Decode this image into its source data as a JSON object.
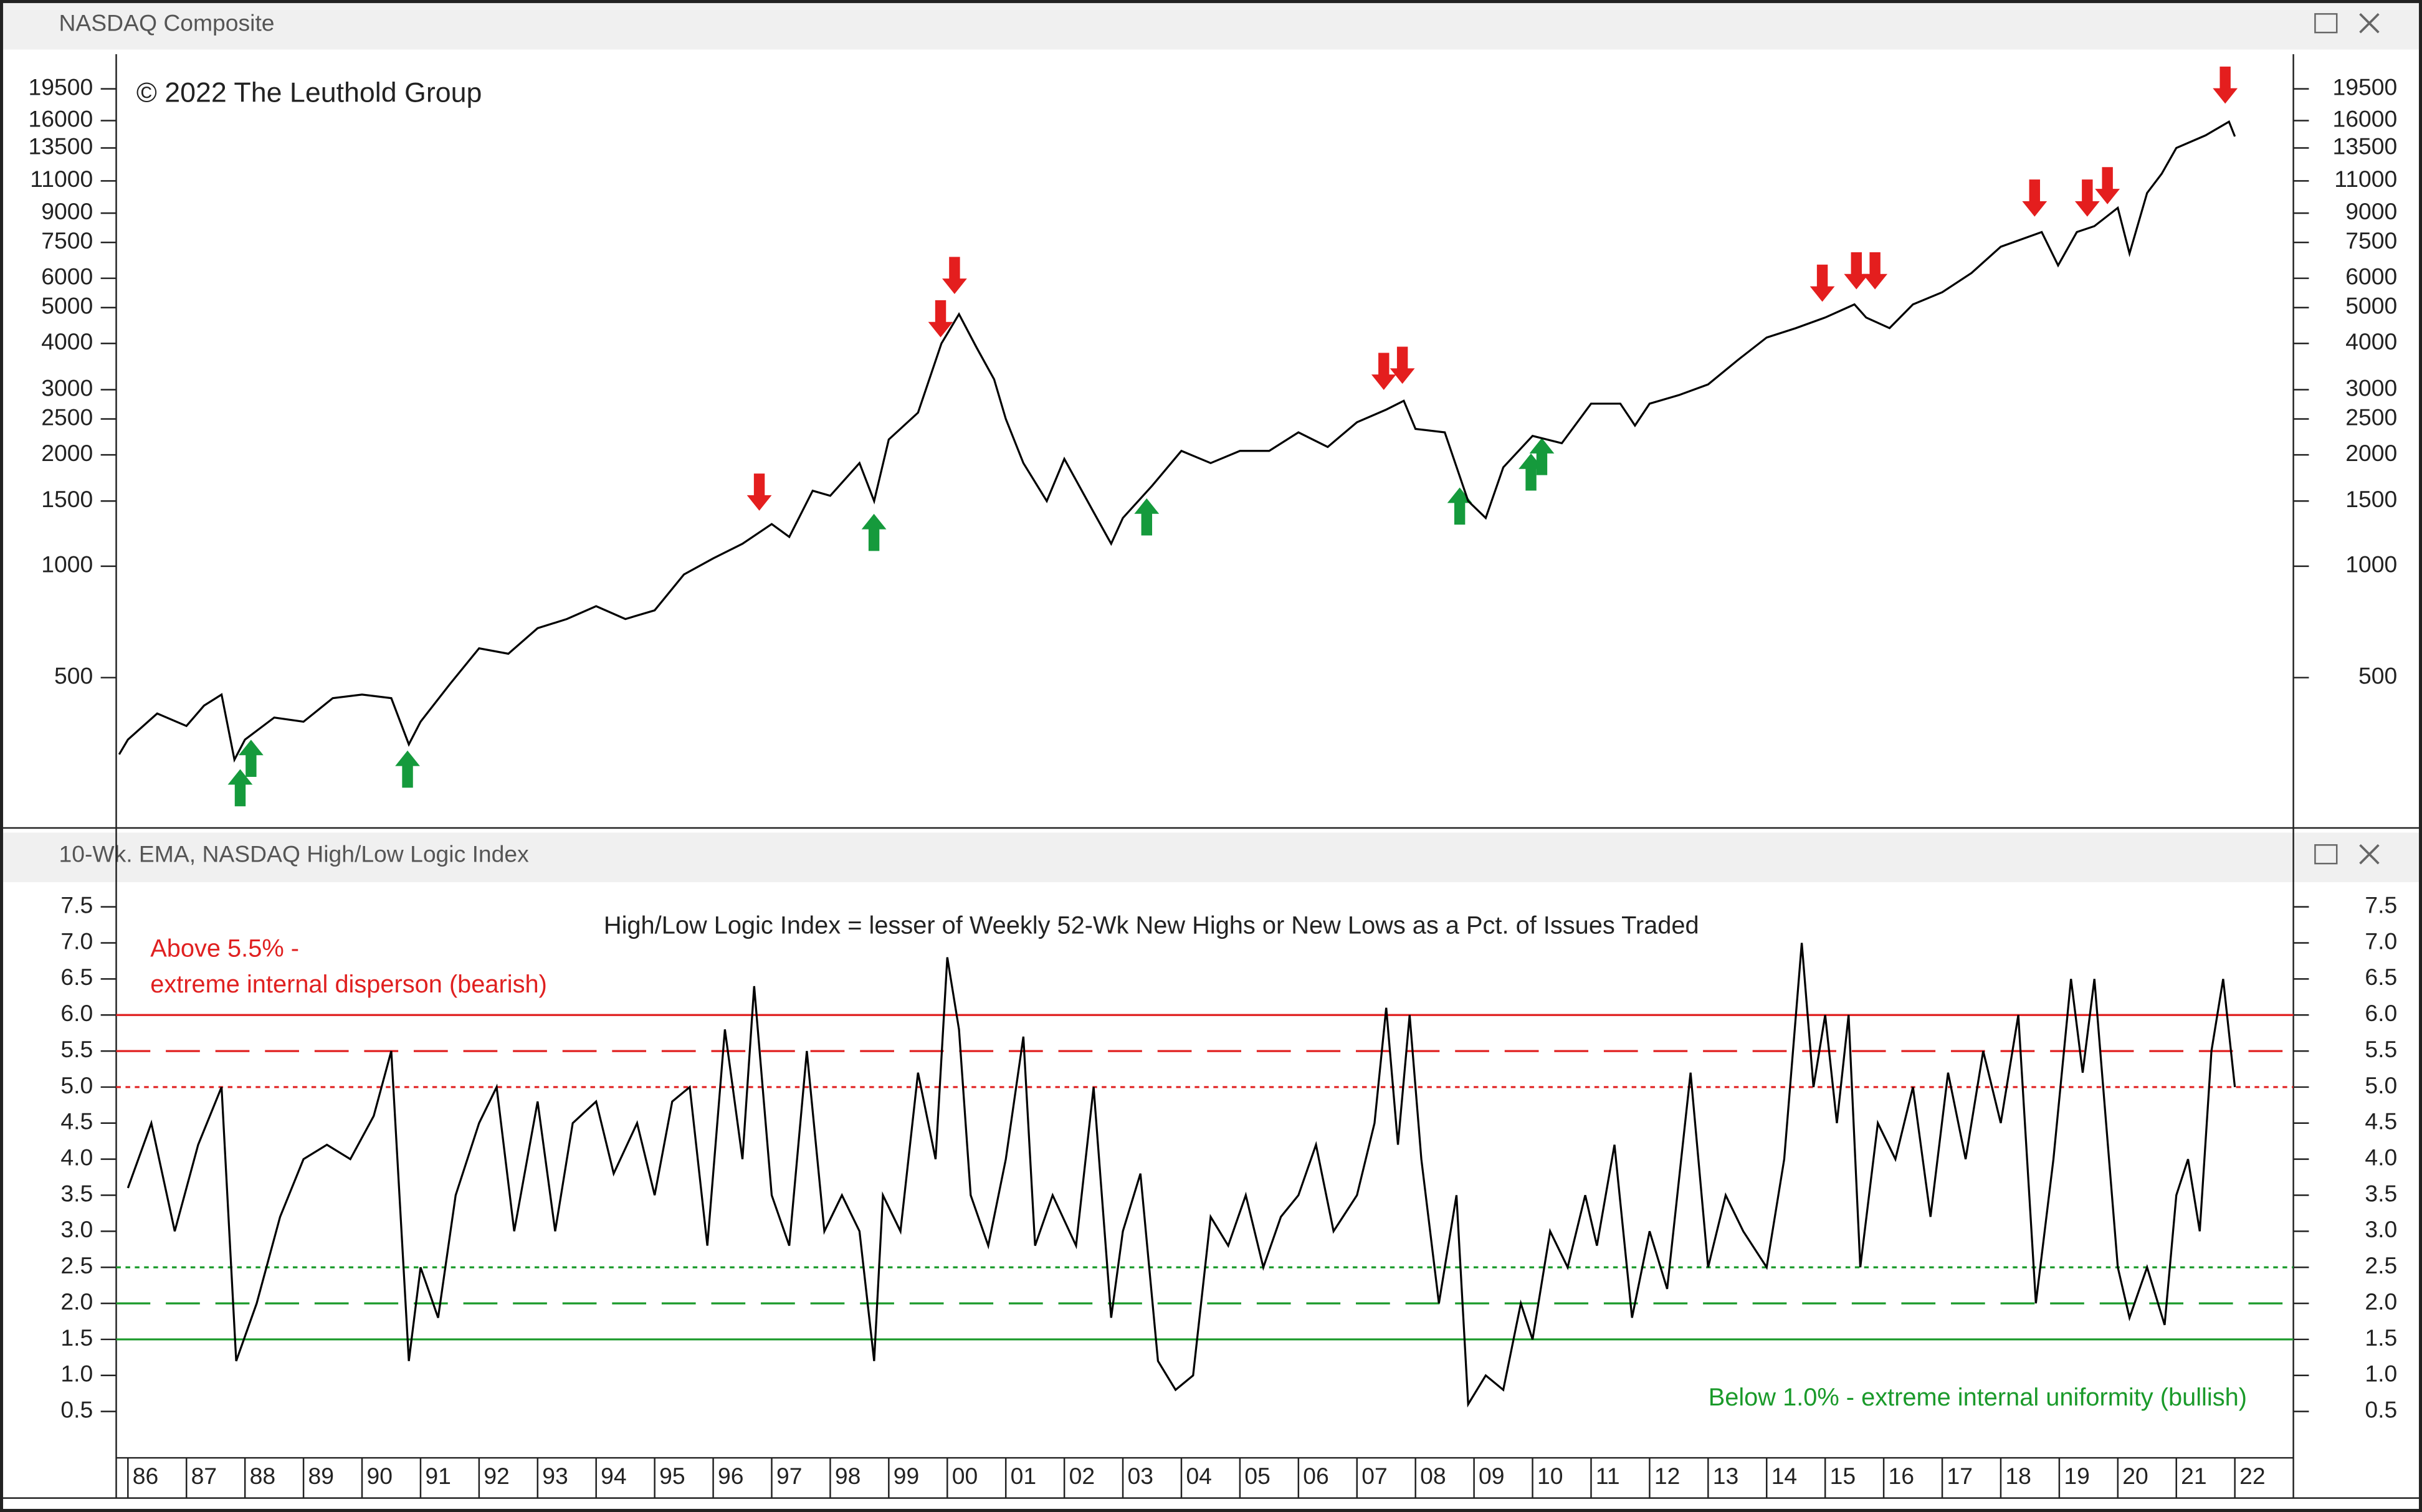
{
  "chart_data": [
    {
      "type": "line",
      "title": "NASDAQ Composite",
      "annotation": "© 2022 The Leuthold Group",
      "color": "#000000",
      "log_scale": true,
      "x": [
        1985.85,
        1986.0,
        1986.5,
        1987.0,
        1987.3,
        1987.6,
        1987.82,
        1988.0,
        1988.5,
        1989.0,
        1989.5,
        1990.0,
        1990.5,
        1990.8,
        1991.0,
        1991.5,
        1992.0,
        1992.5,
        1993.0,
        1993.5,
        1994.0,
        1994.5,
        1995.0,
        1995.5,
        1996.0,
        1996.5,
        1997.0,
        1997.3,
        1997.7,
        1998.0,
        1998.5,
        1998.75,
        1999.0,
        1999.5,
        1999.9,
        2000.2,
        2000.5,
        2000.8,
        2001.0,
        2001.3,
        2001.7,
        2002.0,
        2002.5,
        2002.8,
        2003.0,
        2003.5,
        2004.0,
        2004.5,
        2005.0,
        2005.5,
        2006.0,
        2006.5,
        2007.0,
        2007.5,
        2007.8,
        2008.0,
        2008.5,
        2008.9,
        2009.2,
        2009.5,
        2010.0,
        2010.5,
        2011.0,
        2011.5,
        2011.75,
        2012.0,
        2012.5,
        2013.0,
        2013.5,
        2014.0,
        2014.5,
        2015.0,
        2015.5,
        2015.7,
        2016.1,
        2016.5,
        2017.0,
        2017.5,
        2018.0,
        2018.7,
        2018.98,
        2019.3,
        2019.6,
        2020.0,
        2020.2,
        2020.5,
        2020.75,
        2021.0,
        2021.5,
        2021.9,
        2022.0
      ],
      "values": [
        310,
        340,
        400,
        370,
        420,
        450,
        300,
        340,
        390,
        380,
        440,
        450,
        440,
        330,
        380,
        480,
        600,
        580,
        680,
        720,
        780,
        720,
        760,
        950,
        1050,
        1150,
        1300,
        1200,
        1600,
        1550,
        1900,
        1500,
        2200,
        2600,
        4000,
        4800,
        3900,
        3200,
        2500,
        1900,
        1500,
        1950,
        1400,
        1150,
        1350,
        1650,
        2050,
        1900,
        2050,
        2050,
        2300,
        2100,
        2450,
        2650,
        2800,
        2350,
        2300,
        1500,
        1350,
        1850,
        2250,
        2150,
        2750,
        2750,
        2400,
        2750,
        2900,
        3100,
        3600,
        4150,
        4400,
        4700,
        5100,
        4700,
        4400,
        5100,
        5500,
        6200,
        7300,
        8000,
        6500,
        8000,
        8300,
        9300,
        7000,
        10200,
        11500,
        13500,
        14600,
        15900,
        14500
      ],
      "xlim": [
        1985.8,
        2023
      ],
      "ylim": [
        200,
        24200
      ],
      "yticks": [
        500,
        1000,
        1500,
        2000,
        2500,
        3000,
        4000,
        5000,
        6000,
        7500,
        9000,
        11000,
        13500,
        16000,
        19500
      ]
    },
    {
      "type": "line",
      "title": "10-Wk. EMA, NASDAQ High/Low Logic Index",
      "subtitle": "High/Low Logic Index = lesser of Weekly 52-Wk New Highs or New Lows as a Pct. of Issues Traded",
      "annotations": [
        "Above 5.5% -",
        "extreme internal disperson (bearish)",
        "Below 1.0% - extreme internal uniformity (bullish)"
      ],
      "color": "#000000",
      "x": [
        1986.0,
        1986.4,
        1986.8,
        1987.2,
        1987.6,
        1987.85,
        1988.2,
        1988.6,
        1989.0,
        1989.4,
        1989.8,
        1990.2,
        1990.5,
        1990.8,
        1991.0,
        1991.3,
        1991.6,
        1992.0,
        1992.3,
        1992.6,
        1993.0,
        1993.3,
        1993.6,
        1994.0,
        1994.3,
        1994.7,
        1995.0,
        1995.3,
        1995.6,
        1995.9,
        1996.2,
        1996.5,
        1996.7,
        1997.0,
        1997.3,
        1997.6,
        1997.9,
        1998.2,
        1998.5,
        1998.75,
        1998.9,
        1999.2,
        1999.5,
        1999.8,
        2000.0,
        2000.2,
        2000.4,
        2000.7,
        2001.0,
        2001.3,
        2001.5,
        2001.8,
        2002.2,
        2002.5,
        2002.8,
        2003.0,
        2003.3,
        2003.6,
        2003.9,
        2004.2,
        2004.5,
        2004.8,
        2005.1,
        2005.4,
        2005.7,
        2006.0,
        2006.3,
        2006.6,
        2007.0,
        2007.3,
        2007.5,
        2007.7,
        2007.9,
        2008.1,
        2008.4,
        2008.7,
        2008.9,
        2009.2,
        2009.5,
        2009.8,
        2010.0,
        2010.3,
        2010.6,
        2010.9,
        2011.1,
        2011.4,
        2011.7,
        2012.0,
        2012.3,
        2012.7,
        2013.0,
        2013.3,
        2013.6,
        2014.0,
        2014.3,
        2014.6,
        2014.8,
        2015.0,
        2015.2,
        2015.4,
        2015.6,
        2015.9,
        2016.2,
        2016.5,
        2016.8,
        2017.1,
        2017.4,
        2017.7,
        2018.0,
        2018.3,
        2018.6,
        2018.9,
        2019.2,
        2019.4,
        2019.6,
        2019.8,
        2020.0,
        2020.2,
        2020.5,
        2020.8,
        2021.0,
        2021.2,
        2021.4,
        2021.6,
        2021.8,
        2022.0
      ],
      "values": [
        3.6,
        4.5,
        3.0,
        4.2,
        5.0,
        1.2,
        2.0,
        3.2,
        4.0,
        4.2,
        4.0,
        4.6,
        5.5,
        1.2,
        2.5,
        1.8,
        3.5,
        4.5,
        5.0,
        3.0,
        4.8,
        3.0,
        4.5,
        4.8,
        3.8,
        4.5,
        3.5,
        4.8,
        5.0,
        2.8,
        5.8,
        4.0,
        6.4,
        3.5,
        2.8,
        5.5,
        3.0,
        3.5,
        3.0,
        1.2,
        3.5,
        3.0,
        5.2,
        4.0,
        6.8,
        5.8,
        3.5,
        2.8,
        4.0,
        5.7,
        2.8,
        3.5,
        2.8,
        5.0,
        1.8,
        3.0,
        3.8,
        1.2,
        0.8,
        1.0,
        3.2,
        2.8,
        3.5,
        2.5,
        3.2,
        3.5,
        4.2,
        3.0,
        3.5,
        4.5,
        6.1,
        4.2,
        6.0,
        4.0,
        2.0,
        3.5,
        0.6,
        1.0,
        0.8,
        2.0,
        1.5,
        3.0,
        2.5,
        3.5,
        2.8,
        4.2,
        1.8,
        3.0,
        2.2,
        5.2,
        2.5,
        3.5,
        3.0,
        2.5,
        4.0,
        7.0,
        5.0,
        6.0,
        4.5,
        6.0,
        2.5,
        4.5,
        4.0,
        5.0,
        3.2,
        5.2,
        4.0,
        5.5,
        4.5,
        6.0,
        2.0,
        4.0,
        6.5,
        5.2,
        6.5,
        4.5,
        2.5,
        1.8,
        2.5,
        1.7,
        3.5,
        4.0,
        3.0,
        5.5,
        6.5,
        5.0
      ],
      "xlim": [
        1985.8,
        2023
      ],
      "ylim": [
        -0.1,
        7.8
      ],
      "yticks": [
        0.5,
        {
          "value": 1,
          "label": "1.0"
        },
        1.5,
        {
          "value": 2,
          "label": "2.0"
        },
        2.5,
        {
          "value": 3,
          "label": "3.0"
        },
        3.5,
        {
          "value": 4,
          "label": "4.0"
        },
        4.5,
        {
          "value": 5,
          "label": "5.0"
        },
        5.5,
        {
          "value": 6,
          "label": "6.0"
        },
        6.5,
        {
          "value": 7,
          "label": "7.0"
        },
        7.5
      ],
      "xticks": [
        {
          "value": 1986,
          "label": "86"
        },
        {
          "value": 1987,
          "label": "87"
        },
        {
          "value": 1988,
          "label": "88"
        },
        {
          "value": 1989,
          "label": "89"
        },
        {
          "value": 1990,
          "label": "90"
        },
        {
          "value": 1991,
          "label": "91"
        },
        {
          "value": 1992,
          "label": "92"
        },
        {
          "value": 1993,
          "label": "93"
        },
        {
          "value": 1994,
          "label": "94"
        },
        {
          "value": 1995,
          "label": "95"
        },
        {
          "value": 1996,
          "label": "96"
        },
        {
          "value": 1997,
          "label": "97"
        },
        {
          "value": 1998,
          "label": "98"
        },
        {
          "value": 1999,
          "label": "99"
        },
        {
          "value": 2000,
          "label": "00"
        },
        {
          "value": 2001,
          "label": "01"
        },
        {
          "value": 2002,
          "label": "02"
        },
        {
          "value": 2003,
          "label": "03"
        },
        {
          "value": 2004,
          "label": "04"
        },
        {
          "value": 2005,
          "label": "05"
        },
        {
          "value": 2006,
          "label": "06"
        },
        {
          "value": 2007,
          "label": "07"
        },
        {
          "value": 2008,
          "label": "08"
        },
        {
          "value": 2009,
          "label": "09"
        },
        {
          "value": 2010,
          "label": "10"
        },
        {
          "value": 2011,
          "label": "11"
        },
        {
          "value": 2012,
          "label": "12"
        },
        {
          "value": 2013,
          "label": "13"
        },
        {
          "value": 2014,
          "label": "14"
        },
        {
          "value": 2015,
          "label": "15"
        },
        {
          "value": 2016,
          "label": "16"
        },
        {
          "value": 2017,
          "label": "17"
        },
        {
          "value": 2018,
          "label": "18"
        },
        {
          "value": 2019,
          "label": "19"
        },
        {
          "value": 2020,
          "label": "20"
        },
        {
          "value": 2021,
          "label": "21"
        },
        {
          "value": 2022,
          "label": "22"
        }
      ],
      "reference_lines": [
        {
          "value": 6,
          "color": "#e02020",
          "style": "solid"
        },
        {
          "value": 5.5,
          "color": "#e02020",
          "style": "dashed"
        },
        {
          "value": 5,
          "color": "#e02020",
          "style": "dotted"
        },
        {
          "value": 2.5,
          "color": "#1a9a2a",
          "style": "dotted"
        },
        {
          "value": 2,
          "color": "#1a9a2a",
          "style": "dashed"
        },
        {
          "value": 1.5,
          "color": "#1a9a2a",
          "style": "solid"
        }
      ]
    }
  ]
}
